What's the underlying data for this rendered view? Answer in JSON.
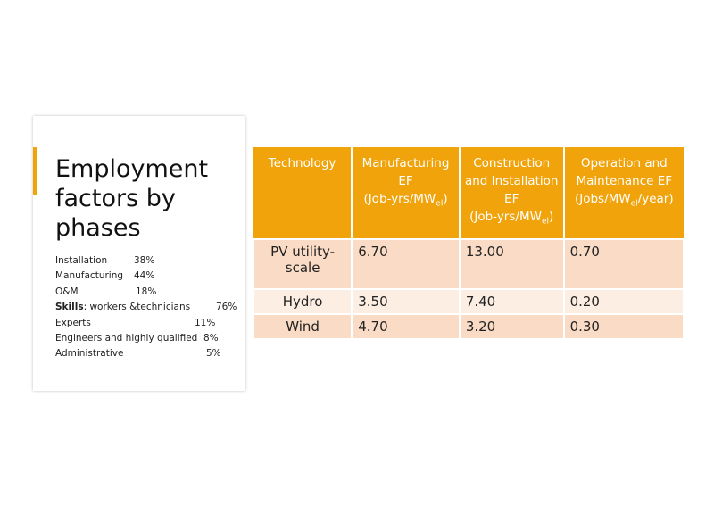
{
  "card": {
    "title": "Employment factors by phases",
    "lines": [
      {
        "label": "Installation",
        "value": "38%"
      },
      {
        "label": "Manufacturing",
        "value": "44%"
      },
      {
        "label": "O&M",
        "value": "18%"
      },
      {
        "label_bold": "Skills",
        "label": ": workers &technicians",
        "value": "76%"
      },
      {
        "label": "Experts",
        "value": "11%"
      },
      {
        "label": "Engineers and highly qualified",
        "value": "8%"
      },
      {
        "label": "Administrative",
        "value": "5%"
      }
    ]
  },
  "table": {
    "header": [
      {
        "main": "Technology"
      },
      {
        "main": "Manufacturing EF",
        "unit": "(Job-yrs/MW",
        "sub": "el",
        "tail": ")"
      },
      {
        "main": "Construction and Installation EF",
        "unit": "(Job-yrs/MW",
        "sub": "el",
        "tail": ")"
      },
      {
        "main": "Operation and Maintenance EF",
        "unit": "(Jobs/MW",
        "sub": "el",
        "tail": "/year)"
      }
    ],
    "rows": [
      [
        "PV utility-scale",
        "6.70",
        "13.00",
        "0.70"
      ],
      [
        "Hydro",
        "3.50",
        "7.40",
        "0.20"
      ],
      [
        "Wind",
        "4.70",
        "3.20",
        "0.30"
      ]
    ]
  }
}
